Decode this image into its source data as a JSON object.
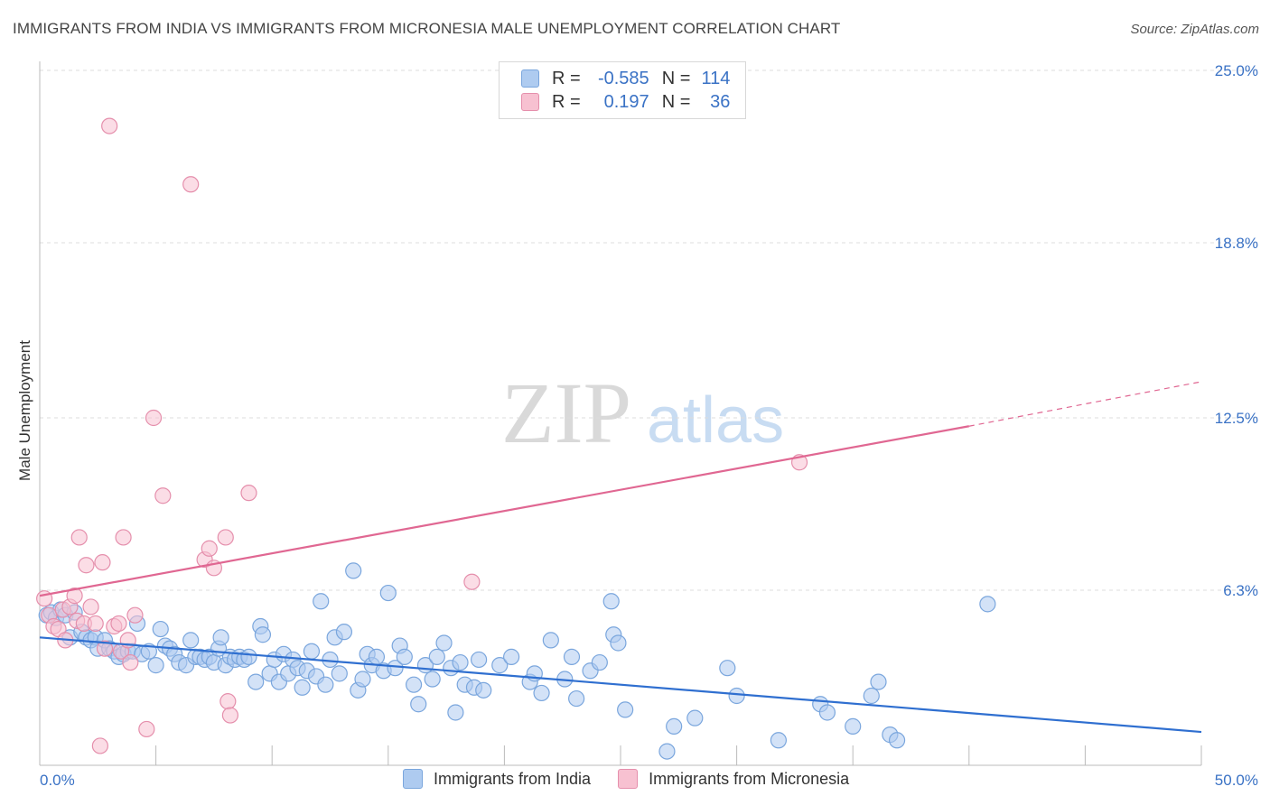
{
  "title": "IMMIGRANTS FROM INDIA VS IMMIGRANTS FROM MICRONESIA MALE UNEMPLOYMENT CORRELATION CHART",
  "source": "Source: ZipAtlas.com",
  "watermark": {
    "zip": "ZIP",
    "atlas": "atlas"
  },
  "legend": {
    "r_label": "R =",
    "n_label": "N =",
    "rows": [
      {
        "r": "-0.585",
        "n": "114",
        "color": "#aecbf0",
        "border": "#7aa6dd"
      },
      {
        "r": "0.197",
        "n": "36",
        "color": "#f7c1d1",
        "border": "#e58fac"
      }
    ]
  },
  "chart_data": {
    "type": "scatter",
    "ylabel": "Male Unemployment",
    "xlim": [
      0,
      50
    ],
    "ylim": [
      0,
      25
    ],
    "y_ticks": [
      {
        "value": 25.0,
        "label": "25.0%"
      },
      {
        "value": 18.8,
        "label": "18.8%"
      },
      {
        "value": 12.5,
        "label": "12.5%"
      },
      {
        "value": 6.3,
        "label": "6.3%"
      }
    ],
    "x_tick_labels": {
      "min": "0.0%",
      "max": "50.0%"
    },
    "grid": true,
    "series": [
      {
        "name": "Immigrants from India",
        "color": "#7aa6dd",
        "fill": "#aecbf0",
        "line_color": "#2f6fd0",
        "trend": {
          "x0": 0,
          "y0": 4.6,
          "x1": 50,
          "y1": 1.2
        },
        "points": [
          [
            0.3,
            5.4
          ],
          [
            0.5,
            5.5
          ],
          [
            0.7,
            5.3
          ],
          [
            0.9,
            5.6
          ],
          [
            1.1,
            5.4
          ],
          [
            1.3,
            4.6
          ],
          [
            1.5,
            5.5
          ],
          [
            1.8,
            4.8
          ],
          [
            2.0,
            4.6
          ],
          [
            2.2,
            4.5
          ],
          [
            2.4,
            4.6
          ],
          [
            2.5,
            4.2
          ],
          [
            2.8,
            4.5
          ],
          [
            3.0,
            4.2
          ],
          [
            3.2,
            4.1
          ],
          [
            3.4,
            3.9
          ],
          [
            3.6,
            4.0
          ],
          [
            3.8,
            4.1
          ],
          [
            4.0,
            4.1
          ],
          [
            4.2,
            5.1
          ],
          [
            4.4,
            4.0
          ],
          [
            4.7,
            4.1
          ],
          [
            5.0,
            3.6
          ],
          [
            5.2,
            4.9
          ],
          [
            5.4,
            4.3
          ],
          [
            5.6,
            4.2
          ],
          [
            5.8,
            4.0
          ],
          [
            6.0,
            3.7
          ],
          [
            6.3,
            3.6
          ],
          [
            6.5,
            4.5
          ],
          [
            6.7,
            3.9
          ],
          [
            6.9,
            3.9
          ],
          [
            7.1,
            3.8
          ],
          [
            7.3,
            3.9
          ],
          [
            7.5,
            3.7
          ],
          [
            7.7,
            4.2
          ],
          [
            7.8,
            4.6
          ],
          [
            8.0,
            3.6
          ],
          [
            8.2,
            3.9
          ],
          [
            8.4,
            3.8
          ],
          [
            8.6,
            3.9
          ],
          [
            8.8,
            3.8
          ],
          [
            9.0,
            3.9
          ],
          [
            9.3,
            3.0
          ],
          [
            9.5,
            5.0
          ],
          [
            9.6,
            4.7
          ],
          [
            9.9,
            3.3
          ],
          [
            10.1,
            3.8
          ],
          [
            10.3,
            3.0
          ],
          [
            10.5,
            4.0
          ],
          [
            10.7,
            3.3
          ],
          [
            10.9,
            3.8
          ],
          [
            11.1,
            3.5
          ],
          [
            11.3,
            2.8
          ],
          [
            11.5,
            3.4
          ],
          [
            11.7,
            4.1
          ],
          [
            11.9,
            3.2
          ],
          [
            12.1,
            5.9
          ],
          [
            12.3,
            2.9
          ],
          [
            12.5,
            3.8
          ],
          [
            12.7,
            4.6
          ],
          [
            12.9,
            3.3
          ],
          [
            13.1,
            4.8
          ],
          [
            13.5,
            7.0
          ],
          [
            13.7,
            2.7
          ],
          [
            13.9,
            3.1
          ],
          [
            14.1,
            4.0
          ],
          [
            14.3,
            3.6
          ],
          [
            14.5,
            3.9
          ],
          [
            14.8,
            3.4
          ],
          [
            15.0,
            6.2
          ],
          [
            15.3,
            3.5
          ],
          [
            15.5,
            4.3
          ],
          [
            15.7,
            3.9
          ],
          [
            16.1,
            2.9
          ],
          [
            16.3,
            2.2
          ],
          [
            16.6,
            3.6
          ],
          [
            16.9,
            3.1
          ],
          [
            17.1,
            3.9
          ],
          [
            17.4,
            4.4
          ],
          [
            17.7,
            3.5
          ],
          [
            17.9,
            1.9
          ],
          [
            18.1,
            3.7
          ],
          [
            18.3,
            2.9
          ],
          [
            18.7,
            2.8
          ],
          [
            18.9,
            3.8
          ],
          [
            19.1,
            2.7
          ],
          [
            19.8,
            3.6
          ],
          [
            20.3,
            3.9
          ],
          [
            21.1,
            3.0
          ],
          [
            21.3,
            3.3
          ],
          [
            21.6,
            2.6
          ],
          [
            22.0,
            4.5
          ],
          [
            22.6,
            3.1
          ],
          [
            22.9,
            3.9
          ],
          [
            23.1,
            2.4
          ],
          [
            23.7,
            3.4
          ],
          [
            24.1,
            3.7
          ],
          [
            24.7,
            4.7
          ],
          [
            24.9,
            4.4
          ],
          [
            24.6,
            5.9
          ],
          [
            25.2,
            2.0
          ],
          [
            27.3,
            1.4
          ],
          [
            28.2,
            1.7
          ],
          [
            29.6,
            3.5
          ],
          [
            30.0,
            2.5
          ],
          [
            31.8,
            0.9
          ],
          [
            33.6,
            2.2
          ],
          [
            33.9,
            1.9
          ],
          [
            35.0,
            1.4
          ],
          [
            35.8,
            2.5
          ],
          [
            36.1,
            3.0
          ],
          [
            36.6,
            1.1
          ],
          [
            36.9,
            0.9
          ],
          [
            27.0,
            0.5
          ],
          [
            40.8,
            5.8
          ]
        ]
      },
      {
        "name": "Immigrants from Micronesia",
        "color": "#e58fac",
        "fill": "#f7c1d1",
        "line_color": "#e06792",
        "trend": {
          "x0": 0,
          "y0": 6.1,
          "x1": 40,
          "y1": 12.2
        },
        "trend_dash": {
          "x0": 40,
          "y0": 12.2,
          "x1": 50,
          "y1": 13.8
        },
        "points": [
          [
            0.2,
            6.0
          ],
          [
            0.4,
            5.4
          ],
          [
            0.6,
            5.0
          ],
          [
            0.8,
            4.9
          ],
          [
            1.0,
            5.6
          ],
          [
            1.1,
            4.5
          ],
          [
            1.3,
            5.7
          ],
          [
            1.5,
            6.1
          ],
          [
            1.6,
            5.2
          ],
          [
            1.7,
            8.2
          ],
          [
            1.9,
            5.1
          ],
          [
            2.0,
            7.2
          ],
          [
            2.2,
            5.7
          ],
          [
            2.4,
            5.1
          ],
          [
            2.6,
            0.7
          ],
          [
            2.7,
            7.3
          ],
          [
            2.8,
            4.2
          ],
          [
            3.0,
            23.0
          ],
          [
            3.2,
            5.0
          ],
          [
            3.4,
            5.1
          ],
          [
            3.5,
            4.1
          ],
          [
            3.6,
            8.2
          ],
          [
            3.8,
            4.5
          ],
          [
            3.9,
            3.7
          ],
          [
            4.1,
            5.4
          ],
          [
            4.6,
            1.3
          ],
          [
            4.9,
            12.5
          ],
          [
            5.3,
            9.7
          ],
          [
            6.5,
            20.9
          ],
          [
            7.1,
            7.4
          ],
          [
            7.3,
            7.8
          ],
          [
            7.5,
            7.1
          ],
          [
            8.0,
            8.2
          ],
          [
            8.1,
            2.3
          ],
          [
            8.2,
            1.8
          ],
          [
            9.0,
            9.8
          ],
          [
            18.6,
            6.6
          ],
          [
            32.7,
            10.9
          ]
        ]
      }
    ]
  }
}
